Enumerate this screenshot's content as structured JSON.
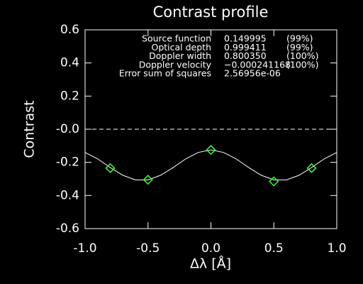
{
  "chart_data": {
    "type": "line",
    "title": "Contrast profile",
    "x_label": "Δλ [Å]",
    "y_label": "Contrast",
    "xlim": [
      -1.0,
      1.0
    ],
    "ylim": [
      -0.6,
      0.6
    ],
    "xticks": [
      {
        "value": -1.0,
        "label": "-1.0"
      },
      -0.5,
      {
        "value": 0,
        "label": "0.0"
      },
      0.5,
      {
        "value": 1.0,
        "label": "1.0"
      }
    ],
    "yticks": [
      -0.6,
      -0.4,
      -0.2,
      {
        "value": 0,
        "label": "-0.0"
      },
      0.2,
      0.4,
      0.6
    ],
    "reference_line": 0,
    "series": [
      {
        "type": "line",
        "color": "#ffffff",
        "x": [
          -1.0,
          -0.9,
          -0.8,
          -0.7,
          -0.6,
          -0.5,
          -0.4,
          -0.3,
          -0.2,
          -0.1,
          0.0,
          0.1,
          0.2,
          0.3,
          0.4,
          0.5,
          0.6,
          0.7,
          0.8,
          0.9,
          1.0
        ],
        "values": [
          -0.14,
          -0.179,
          -0.231,
          -0.278,
          -0.306,
          -0.306,
          -0.278,
          -0.231,
          -0.179,
          -0.14,
          -0.125,
          -0.14,
          -0.179,
          -0.231,
          -0.278,
          -0.306,
          -0.306,
          -0.278,
          -0.231,
          -0.179,
          -0.14
        ]
      },
      {
        "type": "scatter",
        "color": "#33ff33",
        "x": [
          -0.8,
          -0.5,
          0.0,
          0.5,
          0.8
        ],
        "values": [
          -0.235,
          -0.305,
          -0.125,
          -0.315,
          -0.235
        ]
      }
    ],
    "annotations": [
      [
        "Source function",
        "0.149995",
        "(99%)"
      ],
      [
        "Optical depth",
        "0.999411",
        "(99%)"
      ],
      [
        "Doppler width",
        "0.800350",
        "(100%)"
      ],
      [
        "Doppler velocity",
        "−0.000241168",
        "(100%)"
      ],
      [
        "Error sum of squares",
        "2.56956e-06"
      ]
    ]
  }
}
